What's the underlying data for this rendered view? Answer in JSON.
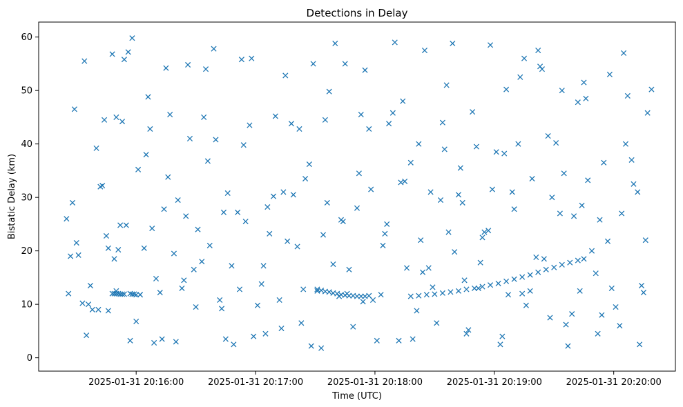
{
  "chart_data": {
    "type": "scatter",
    "title": "Detections in Delay",
    "xlabel": "Time (UTC)",
    "ylabel": "Bistatic Delay (km)",
    "x_ticks": [
      "2025-01-31 20:16:00",
      "2025-01-31 20:17:00",
      "2025-01-31 20:18:00",
      "2025-01-31 20:19:00",
      "2025-01-31 20:20:00"
    ],
    "y_ticks": [
      0,
      10,
      20,
      30,
      40,
      50,
      60
    ],
    "xlim": [
      "2025-01-31 20:15:11",
      "2025-01-31 20:20:31"
    ],
    "ylim": [
      -2.5,
      62.8
    ],
    "marker": "x",
    "color": "#1f77b4",
    "grid": false,
    "series": [
      {
        "x": [
          "2025-01-31 20:15:25",
          "2025-01-31 20:15:27",
          "2025-01-31 20:15:29",
          "2025-01-31 20:15:31",
          "2025-01-31 20:15:33",
          "2025-01-31 20:15:35",
          "2025-01-31 20:15:37",
          "2025-01-31 20:15:40",
          "2025-01-31 20:15:44",
          "2025-01-31 20:15:46",
          "2025-01-31 20:15:48",
          "2025-01-31 20:15:50",
          "2025-01-31 20:15:52",
          "2025-01-31 20:15:54",
          "2025-01-31 20:15:57",
          "2025-01-31 20:16:01",
          "2025-01-31 20:16:04",
          "2025-01-31 20:16:06",
          "2025-01-31 20:16:09",
          "2025-01-31 20:16:12",
          "2025-01-31 20:16:14",
          "2025-01-31 20:16:17",
          "2025-01-31 20:16:20",
          "2025-01-31 20:16:23",
          "2025-01-31 20:16:26",
          "2025-01-31 20:16:29",
          "2025-01-31 20:16:31",
          "2025-01-31 20:16:34",
          "2025-01-31 20:16:37",
          "2025-01-31 20:16:40",
          "2025-01-31 20:16:43",
          "2025-01-31 20:16:46",
          "2025-01-31 20:16:49",
          "2025-01-31 20:16:52",
          "2025-01-31 20:16:55",
          "2025-01-31 20:16:58",
          "2025-01-31 20:17:01",
          "2025-01-31 20:17:04",
          "2025-01-31 20:17:07",
          "2025-01-31 20:17:10",
          "2025-01-31 20:17:13",
          "2025-01-31 20:17:16",
          "2025-01-31 20:17:19",
          "2025-01-31 20:17:22",
          "2025-01-31 20:17:25",
          "2025-01-31 20:17:28",
          "2025-01-31 20:17:31",
          "2025-01-31 20:17:34",
          "2025-01-31 20:17:37",
          "2025-01-31 20:17:40",
          "2025-01-31 20:17:43",
          "2025-01-31 20:17:46",
          "2025-01-31 20:17:49",
          "2025-01-31 20:17:52",
          "2025-01-31 20:17:55",
          "2025-01-31 20:17:58",
          "2025-01-31 20:18:01",
          "2025-01-31 20:18:04",
          "2025-01-31 20:18:07",
          "2025-01-31 20:18:10",
          "2025-01-31 20:18:13",
          "2025-01-31 20:18:16",
          "2025-01-31 20:18:19",
          "2025-01-31 20:18:22",
          "2025-01-31 20:18:25",
          "2025-01-31 20:18:28",
          "2025-01-31 20:18:31",
          "2025-01-31 20:18:34",
          "2025-01-31 20:18:37",
          "2025-01-31 20:18:40",
          "2025-01-31 20:18:43",
          "2025-01-31 20:18:46",
          "2025-01-31 20:18:49",
          "2025-01-31 20:18:52",
          "2025-01-31 20:18:55",
          "2025-01-31 20:18:58",
          "2025-01-31 20:19:01",
          "2025-01-31 20:19:04",
          "2025-01-31 20:19:07",
          "2025-01-31 20:19:10",
          "2025-01-31 20:19:13",
          "2025-01-31 20:19:16",
          "2025-01-31 20:19:19",
          "2025-01-31 20:19:22",
          "2025-01-31 20:19:25",
          "2025-01-31 20:19:28",
          "2025-01-31 20:19:31",
          "2025-01-31 20:19:34",
          "2025-01-31 20:19:37",
          "2025-01-31 20:19:40",
          "2025-01-31 20:19:43",
          "2025-01-31 20:19:46",
          "2025-01-31 20:19:49",
          "2025-01-31 20:19:52",
          "2025-01-31 20:19:55",
          "2025-01-31 20:19:58",
          "2025-01-31 20:20:01",
          "2025-01-31 20:20:04",
          "2025-01-31 20:20:07",
          "2025-01-31 20:20:10",
          "2025-01-31 20:20:13",
          "2025-01-31 20:20:16",
          "2025-01-31 20:20:19",
          "2025-01-31 20:15:26",
          "2025-01-31 20:15:30",
          "2025-01-31 20:15:34",
          "2025-01-31 20:15:38",
          "2025-01-31 20:15:42",
          "2025-01-31 20:15:46",
          "2025-01-31 20:15:50",
          "2025-01-31 20:15:55",
          "2025-01-31 20:16:00",
          "2025-01-31 20:16:05",
          "2025-01-31 20:16:10",
          "2025-01-31 20:16:15",
          "2025-01-31 20:16:21",
          "2025-01-31 20:16:27",
          "2025-01-31 20:16:33",
          "2025-01-31 20:16:39",
          "2025-01-31 20:16:45",
          "2025-01-31 20:16:51",
          "2025-01-31 20:16:57",
          "2025-01-31 20:17:03",
          "2025-01-31 20:17:09",
          "2025-01-31 20:17:15",
          "2025-01-31 20:17:21",
          "2025-01-31 20:17:27",
          "2025-01-31 20:17:33",
          "2025-01-31 20:17:39",
          "2025-01-31 20:17:45",
          "2025-01-31 20:17:51",
          "2025-01-31 20:17:57",
          "2025-01-31 20:18:03",
          "2025-01-31 20:18:09",
          "2025-01-31 20:18:15",
          "2025-01-31 20:18:21",
          "2025-01-31 20:18:27",
          "2025-01-31 20:18:33",
          "2025-01-31 20:18:39",
          "2025-01-31 20:18:45",
          "2025-01-31 20:18:51",
          "2025-01-31 20:18:57",
          "2025-01-31 20:19:03",
          "2025-01-31 20:19:09",
          "2025-01-31 20:19:15",
          "2025-01-31 20:19:21",
          "2025-01-31 20:19:27",
          "2025-01-31 20:19:33",
          "2025-01-31 20:19:39",
          "2025-01-31 20:19:45",
          "2025-01-31 20:19:51",
          "2025-01-31 20:19:57",
          "2025-01-31 20:20:03",
          "2025-01-31 20:20:09",
          "2025-01-31 20:20:15",
          "2025-01-31 20:15:28",
          "2025-01-31 20:15:36",
          "2025-01-31 20:15:43",
          "2025-01-31 20:15:51",
          "2025-01-31 20:15:58",
          "2025-01-31 20:16:07",
          "2025-01-31 20:16:16",
          "2025-01-31 20:16:24",
          "2025-01-31 20:16:35",
          "2025-01-31 20:16:44",
          "2025-01-31 20:16:54",
          "2025-01-31 20:17:05",
          "2025-01-31 20:17:14",
          "2025-01-31 20:17:24",
          "2025-01-31 20:17:35",
          "2025-01-31 20:17:44",
          "2025-01-31 20:17:54",
          "2025-01-31 20:18:05",
          "2025-01-31 20:18:14",
          "2025-01-31 20:18:24",
          "2025-01-31 20:18:35",
          "2025-01-31 20:18:44",
          "2025-01-31 20:18:54",
          "2025-01-31 20:19:05",
          "2025-01-31 20:19:14",
          "2025-01-31 20:19:24",
          "2025-01-31 20:19:35",
          "2025-01-31 20:19:44",
          "2025-01-31 20:19:54",
          "2025-01-31 20:20:05",
          "2025-01-31 20:20:14",
          "2025-01-31 20:15:41",
          "2025-01-31 20:15:45",
          "2025-01-31 20:15:49",
          "2025-01-31 20:15:53",
          "2025-01-31 20:15:56",
          "2025-01-31 20:16:02",
          "2025-01-31 20:16:08",
          "2025-01-31 20:16:13",
          "2025-01-31 20:16:19",
          "2025-01-31 20:16:25",
          "2025-01-31 20:16:30",
          "2025-01-31 20:16:36",
          "2025-01-31 20:16:42",
          "2025-01-31 20:16:48",
          "2025-01-31 20:16:53",
          "2025-01-31 20:16:59",
          "2025-01-31 20:17:06",
          "2025-01-31 20:17:12",
          "2025-01-31 20:17:18",
          "2025-01-31 20:17:23",
          "2025-01-31 20:17:29",
          "2025-01-31 20:17:36",
          "2025-01-31 20:17:42",
          "2025-01-31 20:17:47",
          "2025-01-31 20:17:53",
          "2025-01-31 20:17:59",
          "2025-01-31 20:18:06",
          "2025-01-31 20:18:12",
          "2025-01-31 20:18:18",
          "2025-01-31 20:18:23",
          "2025-01-31 20:18:29",
          "2025-01-31 20:18:36",
          "2025-01-31 20:18:42",
          "2025-01-31 20:18:47",
          "2025-01-31 20:18:53",
          "2025-01-31 20:18:59",
          "2025-01-31 20:19:06",
          "2025-01-31 20:19:12",
          "2025-01-31 20:19:18",
          "2025-01-31 20:19:23",
          "2025-01-31 20:19:29",
          "2025-01-31 20:19:36",
          "2025-01-31 20:19:42",
          "2025-01-31 20:19:47",
          "2025-01-31 20:19:53",
          "2025-01-31 20:19:59",
          "2025-01-31 20:20:06",
          "2025-01-31 20:20:12",
          "2025-01-31 20:20:17"
        ],
        "y": [
          26.0,
          19.0,
          46.5,
          19.2,
          10.2,
          4.2,
          13.5,
          39.2,
          44.5,
          20.5,
          56.8,
          12.5,
          24.8,
          55.8,
          3.2,
          35.2,
          20.5,
          48.8,
          2.8,
          12.2,
          27.8,
          45.5,
          3.0,
          13.0,
          54.8,
          16.5,
          24.0,
          45.0,
          21.0,
          40.8,
          9.2,
          30.8,
          2.5,
          12.8,
          25.5,
          56.0,
          9.8,
          17.2,
          23.2,
          45.2,
          5.5,
          21.8,
          30.5,
          42.8,
          33.5,
          2.2,
          12.5,
          23.0,
          49.8,
          58.8,
          25.8,
          12.0,
          5.8,
          34.5,
          53.8,
          31.5,
          3.2,
          21.0,
          43.8,
          59.0,
          32.8,
          16.8,
          3.5,
          40.0,
          57.5,
          31.0,
          6.5,
          44.0,
          23.5,
          19.8,
          35.5,
          4.5,
          46.0,
          13.0,
          23.5,
          58.5,
          38.5,
          4.0,
          11.8,
          27.8,
          52.5,
          9.8,
          33.5,
          57.5,
          18.5,
          7.5,
          40.2,
          50.0,
          2.2,
          26.5,
          12.5,
          48.5,
          20.0,
          4.5,
          36.5,
          53.0,
          9.5,
          27.0,
          49.0,
          32.5,
          2.5,
          22.0,
          50.2,
          12.0,
          21.5,
          55.5,
          9.0,
          32.0,
          8.8,
          45.0,
          24.8,
          6.8,
          38.0,
          14.8,
          54.2,
          29.5,
          41.0,
          18.0,
          57.8,
          3.5,
          27.2,
          43.5,
          13.8,
          30.2,
          52.8,
          20.8,
          36.2,
          1.8,
          17.5,
          55.0,
          28.0,
          42.8,
          11.8,
          45.8,
          33.0,
          8.8,
          16.8,
          29.5,
          58.8,
          14.5,
          39.5,
          23.8,
          2.5,
          31.0,
          56.0,
          18.8,
          41.5,
          27.0,
          8.2,
          51.5,
          15.8,
          21.8,
          6.0,
          37.0,
          12.2,
          29.0,
          10.0,
          32.2,
          20.2,
          59.8,
          42.8,
          33.8,
          14.5,
          54.0,
          27.2,
          39.8,
          4.5,
          31.0,
          12.8,
          44.5,
          25.5,
          10.5,
          23.2,
          48.0,
          16.0,
          39.0,
          29.0,
          22.5,
          38.2,
          12.0,
          54.0,
          34.5,
          28.5,
          8.0,
          57.0,
          13.5,
          9.0,
          22.8,
          18.5,
          44.2,
          57.2,
          11.8,
          24.2,
          3.5,
          19.5,
          26.5,
          9.5,
          36.8,
          10.8,
          17.2,
          55.8,
          4.0,
          28.2,
          10.8,
          43.8,
          6.5,
          55.0,
          29.0,
          11.5,
          16.5,
          45.5,
          10.8,
          25.0,
          3.2,
          36.5,
          22.0,
          13.2,
          51.0,
          30.5,
          5.2,
          17.8,
          31.5,
          50.2,
          40.0,
          12.5,
          54.5,
          30.0,
          6.2,
          47.8,
          33.2,
          25.8,
          13.0,
          40.0,
          31.0,
          45.8
        ]
      },
      {
        "x": [
          "2025-01-31 20:15:48",
          "2025-01-31 20:15:49",
          "2025-01-31 20:15:50",
          "2025-01-31 20:15:51",
          "2025-01-31 20:15:52",
          "2025-01-31 20:15:53",
          "2025-01-31 20:15:54",
          "2025-01-31 20:15:57",
          "2025-01-31 20:15:58",
          "2025-01-31 20:15:59",
          "2025-01-31 20:16:00",
          "2025-01-31 20:16:02",
          "2025-01-31 20:17:31",
          "2025-01-31 20:17:33",
          "2025-01-31 20:17:35",
          "2025-01-31 20:17:37",
          "2025-01-31 20:17:39",
          "2025-01-31 20:17:41",
          "2025-01-31 20:17:43",
          "2025-01-31 20:17:45",
          "2025-01-31 20:17:47",
          "2025-01-31 20:17:49",
          "2025-01-31 20:17:51",
          "2025-01-31 20:17:53",
          "2025-01-31 20:17:55",
          "2025-01-31 20:17:57",
          "2025-01-31 20:18:18",
          "2025-01-31 20:18:22",
          "2025-01-31 20:18:26",
          "2025-01-31 20:18:30",
          "2025-01-31 20:18:34",
          "2025-01-31 20:18:38",
          "2025-01-31 20:18:42",
          "2025-01-31 20:18:46",
          "2025-01-31 20:18:50",
          "2025-01-31 20:18:54",
          "2025-01-31 20:18:58",
          "2025-01-31 20:19:02",
          "2025-01-31 20:19:06",
          "2025-01-31 20:19:10",
          "2025-01-31 20:19:14",
          "2025-01-31 20:19:18",
          "2025-01-31 20:19:22",
          "2025-01-31 20:19:26",
          "2025-01-31 20:19:30",
          "2025-01-31 20:19:34",
          "2025-01-31 20:19:38",
          "2025-01-31 20:19:42",
          "2025-01-31 20:19:45"
        ],
        "y": [
          12.0,
          12.0,
          12.0,
          12.0,
          11.9,
          11.9,
          11.9,
          12.0,
          11.9,
          11.9,
          11.8,
          11.8,
          12.8,
          12.6,
          12.4,
          12.3,
          12.1,
          12.0,
          11.8,
          11.7,
          11.6,
          11.6,
          11.5,
          11.5,
          11.5,
          11.6,
          11.5,
          11.6,
          11.8,
          11.9,
          12.1,
          12.3,
          12.5,
          12.8,
          13.0,
          13.3,
          13.6,
          13.9,
          14.3,
          14.7,
          15.1,
          15.5,
          16.0,
          16.5,
          16.9,
          17.4,
          17.8,
          18.2,
          18.5
        ]
      }
    ]
  }
}
